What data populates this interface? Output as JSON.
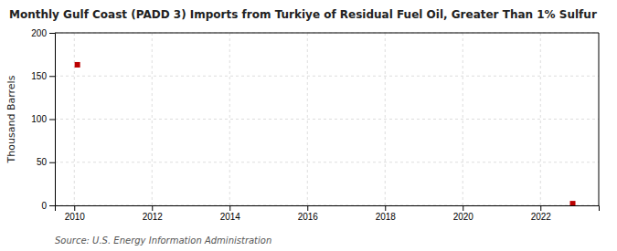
{
  "chart_data": {
    "type": "scatter",
    "title": "Monthly Gulf Coast (PADD 3) Imports from Turkiye of Residual Fuel Oil, Greater Than 1% Sulfur",
    "ylabel": "Thousand Barrels",
    "source": "Source: U.S. Energy Information Administration",
    "x": [
      2010.08,
      2022.83
    ],
    "values": [
      163,
      2
    ],
    "color": "#bb0000",
    "marker": "square",
    "xlim": [
      2009.5,
      2023.5
    ],
    "xticks": [
      2010,
      2012,
      2014,
      2016,
      2018,
      2020,
      2022
    ],
    "ylim": [
      0,
      200
    ],
    "yticks": [
      0,
      50,
      100,
      150,
      200
    ],
    "grid": true
  }
}
